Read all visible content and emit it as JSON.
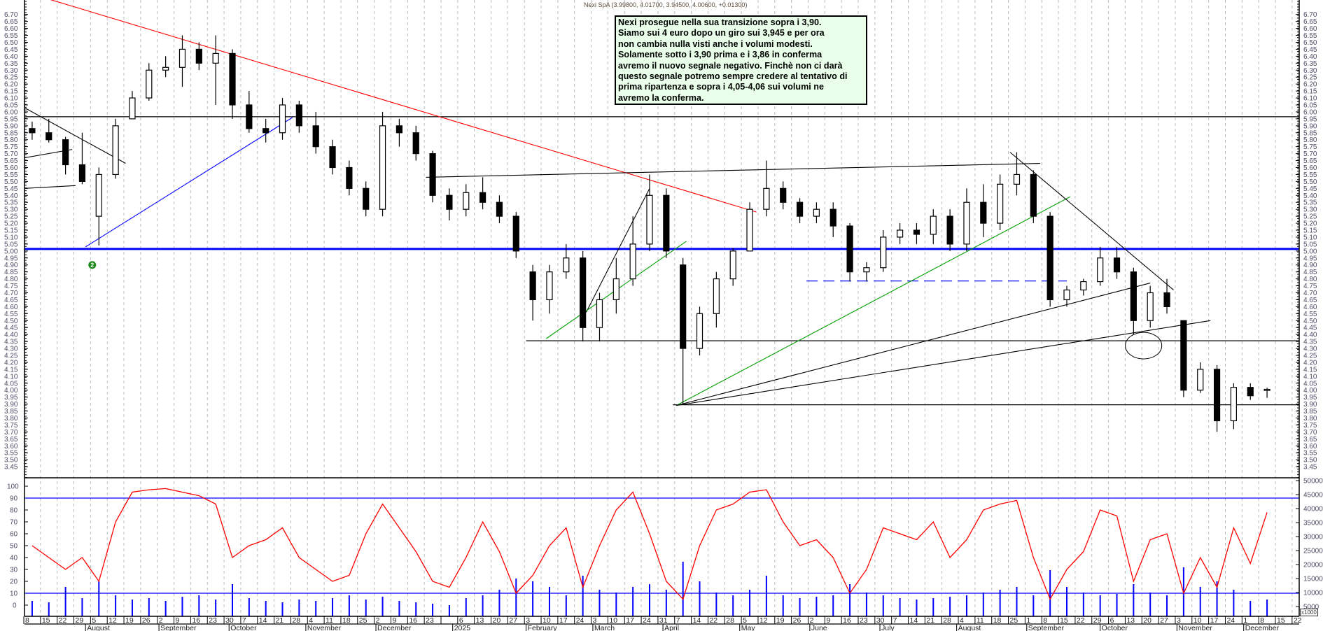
{
  "title": "Nexi SpA (3.99800, 4.01700, 3.94500, 4.00600, +0.01300)",
  "note_lines": [
    "Nexi prosegue nella sua transizione  sopra i 3,90.",
    "Siamo sui 4 euro dopo un giro sui 3,945 e per ora",
    "non cambia nulla visti anche i volumi modesti.",
    "Solamente sotto i 3,90 prima e i 3,86 in conferma",
    "avremo il nuovo segnale negativo. Finchè non ci darà",
    "questo segnale potremo sempre credere al tentativo di",
    "prima ripartenza e sopra i 4,05-4,06 sui volumi ne",
    "avremo la conferma."
  ],
  "volume_unit_label": "x1000",
  "colors": {
    "resistance": "#ff0000",
    "support_blue": "#0000ff",
    "trend_green": "#00a000",
    "oscillator": "#ff0000",
    "volume": "#0000ff",
    "note_bg": "#e9ffe9"
  },
  "chart_data": {
    "type": "candlestick",
    "start_week": "2024-07-08",
    "price_axis": {
      "min": 3.45,
      "max": 6.7,
      "step": 0.05
    },
    "oscillator_axis": {
      "min": 0,
      "max": 100,
      "step": 10,
      "levels": [
        10,
        90
      ]
    },
    "volume_axis": {
      "min": 5000,
      "max": 50000,
      "step": 5000
    },
    "week_labels": [
      "8",
      "15",
      "22",
      "29",
      "5",
      "12",
      "19",
      "26",
      "2",
      "9",
      "16",
      "23",
      "30",
      "7",
      "14",
      "21",
      "28",
      "4",
      "11",
      "18",
      "25",
      "2",
      "9",
      "16",
      "23",
      "",
      "6",
      "13",
      "20",
      "27",
      "3",
      "10",
      "17",
      "24",
      "3",
      "10",
      "17",
      "24",
      "31",
      "7",
      "14",
      "22",
      "28",
      "5",
      "12",
      "19",
      "26",
      "2",
      "9",
      "16",
      "23",
      "30",
      "7",
      "14",
      "21",
      "28",
      "4",
      "11",
      "18",
      "25",
      "1",
      "8",
      "15",
      "22",
      "29",
      "6",
      "13",
      "20",
      "27",
      "3",
      "10",
      "17",
      "24",
      "1",
      "8",
      "15",
      "22"
    ],
    "months": [
      {
        "label": "August",
        "date": "2024-08-01"
      },
      {
        "label": "September",
        "date": "2024-09-02"
      },
      {
        "label": "October",
        "date": "2024-10-01"
      },
      {
        "label": "November",
        "date": "2024-11-01"
      },
      {
        "label": "December",
        "date": "2024-12-02"
      },
      {
        "label": "2025",
        "date": "2025-01-02"
      },
      {
        "label": "February",
        "date": "2025-02-03"
      },
      {
        "label": "March",
        "date": "2025-03-03"
      },
      {
        "label": "April",
        "date": "2025-04-01"
      },
      {
        "label": "May",
        "date": "2025-05-02"
      },
      {
        "label": "June",
        "date": "2025-06-02"
      },
      {
        "label": "July",
        "date": "2025-07-01"
      },
      {
        "label": "August",
        "date": "2025-08-01"
      },
      {
        "label": "September",
        "date": "2025-09-01"
      },
      {
        "label": "October",
        "date": "2025-10-01"
      },
      {
        "label": "November",
        "date": "2025-11-03"
      },
      {
        "label": "December",
        "date": "2025-12-01"
      }
    ],
    "ohlc": [
      [
        5.88,
        5.93,
        5.8,
        5.85
      ],
      [
        5.85,
        5.95,
        5.78,
        5.8
      ],
      [
        5.8,
        5.82,
        5.55,
        5.62
      ],
      [
        5.62,
        5.85,
        5.48,
        5.5
      ],
      [
        5.25,
        5.6,
        5.04,
        5.55
      ],
      [
        5.55,
        5.95,
        5.52,
        5.9
      ],
      [
        5.95,
        6.15,
        5.95,
        6.1
      ],
      [
        6.1,
        6.35,
        6.08,
        6.3
      ],
      [
        6.3,
        6.4,
        6.25,
        6.32
      ],
      [
        6.32,
        6.55,
        6.18,
        6.45
      ],
      [
        6.45,
        6.5,
        6.3,
        6.35
      ],
      [
        6.35,
        6.55,
        6.05,
        6.42
      ],
      [
        6.42,
        6.45,
        5.95,
        6.05
      ],
      [
        6.05,
        6.15,
        5.85,
        5.88
      ],
      [
        5.88,
        5.95,
        5.78,
        5.85
      ],
      [
        5.85,
        6.1,
        5.8,
        6.05
      ],
      [
        6.05,
        6.08,
        5.85,
        5.9
      ],
      [
        5.9,
        6.0,
        5.7,
        5.75
      ],
      [
        5.75,
        5.8,
        5.55,
        5.6
      ],
      [
        5.6,
        5.65,
        5.4,
        5.45
      ],
      [
        5.45,
        5.5,
        5.25,
        5.3
      ],
      [
        5.3,
        6.0,
        5.25,
        5.9
      ],
      [
        5.9,
        5.95,
        5.75,
        5.85
      ],
      [
        5.85,
        5.9,
        5.65,
        5.7
      ],
      [
        5.7,
        5.72,
        5.35,
        5.4
      ],
      [
        5.4,
        5.45,
        5.22,
        5.3
      ],
      [
        5.3,
        5.48,
        5.25,
        5.42
      ],
      [
        5.42,
        5.53,
        5.3,
        5.35
      ],
      [
        5.35,
        5.4,
        5.2,
        5.25
      ],
      [
        5.25,
        5.28,
        4.95,
        5.0
      ],
      [
        4.85,
        4.9,
        4.5,
        4.65
      ],
      [
        4.65,
        4.9,
        4.55,
        4.85
      ],
      [
        4.85,
        5.05,
        4.8,
        4.95
      ],
      [
        4.95,
        5.0,
        4.35,
        4.45
      ],
      [
        4.45,
        4.7,
        4.35,
        4.65
      ],
      [
        4.65,
        4.95,
        4.55,
        4.8
      ],
      [
        4.8,
        5.25,
        4.75,
        5.05
      ],
      [
        5.05,
        5.55,
        5.0,
        5.4
      ],
      [
        5.4,
        5.45,
        4.95,
        5.0
      ],
      [
        4.9,
        4.95,
        3.9,
        4.3
      ],
      [
        4.3,
        4.6,
        4.25,
        4.55
      ],
      [
        4.55,
        4.85,
        4.45,
        4.8
      ],
      [
        4.8,
        5.02,
        4.75,
        5.0
      ],
      [
        5.0,
        5.35,
        5.0,
        5.3
      ],
      [
        5.3,
        5.65,
        5.25,
        5.45
      ],
      [
        5.45,
        5.5,
        5.3,
        5.35
      ],
      [
        5.35,
        5.38,
        5.2,
        5.25
      ],
      [
        5.25,
        5.35,
        5.2,
        5.3
      ],
      [
        5.3,
        5.35,
        5.1,
        5.18
      ],
      [
        5.18,
        5.2,
        4.78,
        4.85
      ],
      [
        4.85,
        4.92,
        4.78,
        4.88
      ],
      [
        4.88,
        5.15,
        4.85,
        5.1
      ],
      [
        5.1,
        5.2,
        5.05,
        5.15
      ],
      [
        5.15,
        5.2,
        5.05,
        5.12
      ],
      [
        5.12,
        5.3,
        5.05,
        5.25
      ],
      [
        5.25,
        5.3,
        5.0,
        5.05
      ],
      [
        5.05,
        5.45,
        5.0,
        5.35
      ],
      [
        5.35,
        5.48,
        5.1,
        5.2
      ],
      [
        5.2,
        5.55,
        5.15,
        5.48
      ],
      [
        5.48,
        5.71,
        5.4,
        5.55
      ],
      [
        5.55,
        5.58,
        5.2,
        5.25
      ],
      [
        5.25,
        5.28,
        4.6,
        4.65
      ],
      [
        4.65,
        4.75,
        4.6,
        4.72
      ],
      [
        4.72,
        4.8,
        4.68,
        4.78
      ],
      [
        4.78,
        5.03,
        4.75,
        4.95
      ],
      [
        4.95,
        5.03,
        4.8,
        4.85
      ],
      [
        4.85,
        4.88,
        4.4,
        4.5
      ],
      [
        4.5,
        4.75,
        4.45,
        4.7
      ],
      [
        4.7,
        4.8,
        4.55,
        4.6
      ],
      [
        4.5,
        4.5,
        3.95,
        4.0
      ],
      [
        4.0,
        4.2,
        3.98,
        4.15
      ],
      [
        4.15,
        4.18,
        3.7,
        3.78
      ],
      [
        3.78,
        4.05,
        3.72,
        4.02
      ],
      [
        4.02,
        4.05,
        3.93,
        3.96
      ],
      [
        3.998,
        4.017,
        3.945,
        4.006
      ]
    ],
    "oscillator": [
      50,
      40,
      30,
      40,
      20,
      70,
      95,
      97,
      98,
      95,
      92,
      85,
      40,
      50,
      55,
      65,
      40,
      30,
      20,
      25,
      60,
      85,
      65,
      45,
      20,
      15,
      40,
      70,
      45,
      10,
      25,
      50,
      65,
      15,
      50,
      80,
      95,
      60,
      20,
      5,
      50,
      80,
      85,
      95,
      97,
      70,
      50,
      55,
      40,
      10,
      30,
      65,
      60,
      55,
      70,
      40,
      55,
      80,
      85,
      88,
      40,
      5,
      30,
      45,
      80,
      75,
      20,
      55,
      60,
      10,
      40,
      15,
      65,
      35,
      78
    ],
    "volume": [
      7000,
      6500,
      12000,
      8000,
      14000,
      9000,
      7500,
      8000,
      7000,
      8500,
      9000,
      7500,
      13000,
      8000,
      7000,
      6500,
      7500,
      7000,
      8000,
      9000,
      7500,
      8500,
      7000,
      6500,
      6000,
      5500,
      8000,
      9000,
      11000,
      15000,
      14000,
      12000,
      9000,
      16000,
      11000,
      10000,
      12000,
      13000,
      11000,
      21000,
      14000,
      10000,
      9000,
      11000,
      16000,
      9000,
      8000,
      8500,
      9000,
      13000,
      10000,
      9000,
      8000,
      7500,
      8000,
      8500,
      9000,
      10000,
      11000,
      12000,
      9000,
      18000,
      12000,
      10000,
      9000,
      9500,
      13000,
      10000,
      9000,
      19000,
      12000,
      14000,
      11000,
      7000,
      7500
    ],
    "horizontal_lines": [
      {
        "price": 5.965,
        "color": "#000000",
        "from": "2024-07-08",
        "to": "2025-12-22"
      },
      {
        "price": 5.015,
        "color": "#0000ff",
        "from": "2024-07-08",
        "to": "2025-12-22",
        "thick": true
      },
      {
        "price": 4.355,
        "color": "#000000",
        "from": "2025-02-03",
        "to": "2025-12-22"
      },
      {
        "price": 3.895,
        "color": "#000000",
        "from": "2025-04-04",
        "to": "2025-12-22"
      },
      {
        "price": 4.785,
        "color": "#0000ff",
        "from": "2025-05-30",
        "to": "2025-09-17",
        "dashed": true
      }
    ],
    "trend_lines": [
      {
        "color": "#ff0000",
        "p1": [
          "2024-07-17",
          6.81
        ],
        "p2": [
          "2025-05-09",
          5.28
        ]
      },
      {
        "color": "#0000ff",
        "p1": [
          "2024-08-01",
          5.03
        ],
        "p2": [
          "2024-10-28",
          5.96
        ]
      },
      {
        "color": "#000000",
        "p1": [
          "2024-07-08",
          6.03
        ],
        "p2": [
          "2024-08-19",
          5.63
        ]
      },
      {
        "color": "#000000",
        "p1": [
          "2024-07-08",
          5.67
        ],
        "p2": [
          "2024-07-26",
          5.73
        ]
      },
      {
        "color": "#000000",
        "p1": [
          "2024-07-08",
          5.45
        ],
        "p2": [
          "2024-07-29",
          5.47
        ]
      },
      {
        "color": "#000000",
        "p1": [
          "2024-12-23",
          5.53
        ],
        "p2": [
          "2025-09-05",
          5.63
        ]
      },
      {
        "color": "#000000",
        "p1": [
          "2025-02-27",
          4.56
        ],
        "p2": [
          "2025-03-26",
          5.45
        ]
      },
      {
        "color": "#00a000",
        "p1": [
          "2025-02-11",
          4.37
        ],
        "p2": [
          "2025-04-10",
          5.07
        ]
      },
      {
        "color": "#00a000",
        "p1": [
          "2025-04-07",
          3.89
        ],
        "p2": [
          "2025-09-18",
          5.39
        ]
      },
      {
        "color": "#000000",
        "p1": [
          "2025-04-07",
          3.89
        ],
        "p2": [
          "2025-10-22",
          4.77
        ]
      },
      {
        "color": "#000000",
        "p1": [
          "2025-04-07",
          3.89
        ],
        "p2": [
          "2025-11-17",
          4.5
        ]
      },
      {
        "color": "#000000",
        "p1": [
          "2025-08-25",
          5.71
        ],
        "p2": [
          "2025-10-31",
          4.72
        ]
      }
    ],
    "ellipse": {
      "date": "2025-10-20",
      "price": 4.32
    },
    "marker": {
      "label": "2",
      "date": "2024-08-05",
      "price": 4.9,
      "color": "#1a8a1a"
    }
  }
}
